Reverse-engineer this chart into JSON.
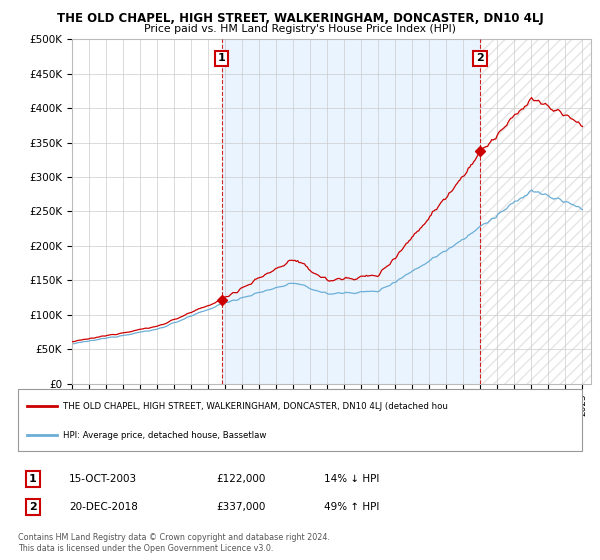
{
  "title": "THE OLD CHAPEL, HIGH STREET, WALKERINGHAM, DONCASTER, DN10 4LJ",
  "subtitle": "Price paid vs. HM Land Registry's House Price Index (HPI)",
  "ylabel_ticks": [
    "£0",
    "£50K",
    "£100K",
    "£150K",
    "£200K",
    "£250K",
    "£300K",
    "£350K",
    "£400K",
    "£450K",
    "£500K"
  ],
  "ytick_values": [
    0,
    50000,
    100000,
    150000,
    200000,
    250000,
    300000,
    350000,
    400000,
    450000,
    500000
  ],
  "ylim": [
    0,
    500000
  ],
  "xlim_start": 1995.0,
  "xlim_end": 2025.5,
  "sale1_date": 2003.79,
  "sale1_price": 122000,
  "sale2_date": 2018.97,
  "sale2_price": 337000,
  "hpi_color": "#6baed6",
  "price_color": "#cc0000",
  "dashed_line_color": "#cc0000",
  "annotation_box_color": "#cc0000",
  "shade_color": "#ddeeff",
  "hatch_color": "#dddddd",
  "legend_line1": "THE OLD CHAPEL, HIGH STREET, WALKERINGHAM, DONCASTER, DN10 4LJ (detached hou",
  "legend_line2": "HPI: Average price, detached house, Bassetlaw",
  "table_row1_num": "1",
  "table_row1_date": "15-OCT-2003",
  "table_row1_price": "£122,000",
  "table_row1_hpi": "14% ↓ HPI",
  "table_row2_num": "2",
  "table_row2_date": "20-DEC-2018",
  "table_row2_price": "£337,000",
  "table_row2_hpi": "49% ↑ HPI",
  "footnote": "Contains HM Land Registry data © Crown copyright and database right 2024.\nThis data is licensed under the Open Government Licence v3.0.",
  "background_color": "#ffffff",
  "grid_color": "#cccccc"
}
